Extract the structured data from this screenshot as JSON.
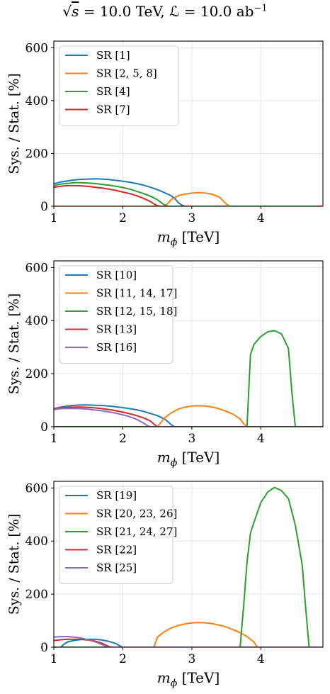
{
  "figure": {
    "title_sqrt": "√",
    "title_s": "s",
    "title_rest": " = 10.0 TeV, ℒ = 10.0 ab",
    "title_sup": "−1"
  },
  "colors": {
    "blue": "#1f77b4",
    "orange": "#ff7f0e",
    "green": "#2ca02c",
    "red": "#d62728",
    "purple": "#9467bd"
  },
  "chart_data": [
    {
      "type": "line",
      "xlabel_main": "m",
      "xlabel_sub": "ϕ",
      "xlabel_unit": " [TeV]",
      "ylabel": "Sys. / Stat. [%]",
      "xlim": [
        1.0,
        4.9
      ],
      "ylim": [
        0,
        625
      ],
      "xticks": [
        "1",
        "2",
        "3",
        "4"
      ],
      "xtick_values": [
        1,
        2,
        3,
        4
      ],
      "yticks": [
        "0",
        "200",
        "400",
        "600"
      ],
      "ytick_values": [
        0,
        200,
        400,
        600
      ],
      "grid": true,
      "legend_position": "top-left",
      "series": [
        {
          "name": "SR [1]",
          "color": "#1f77b4",
          "x": [
            1.0,
            1.1,
            1.2,
            1.3,
            1.4,
            1.5,
            1.6,
            1.7,
            1.8,
            1.9,
            2.0,
            2.1,
            2.2,
            2.3,
            2.4,
            2.5,
            2.6,
            2.7,
            2.75,
            2.8,
            2.85,
            2.9,
            4.9
          ],
          "y": [
            85,
            92,
            96,
            100,
            102,
            103,
            104,
            103,
            101,
            98,
            95,
            91,
            86,
            80,
            72,
            63,
            52,
            40,
            30,
            15,
            5,
            0,
            0
          ]
        },
        {
          "name": "SR [2, 5, 8]",
          "color": "#ff7f0e",
          "x": [
            1.0,
            2.6,
            2.65,
            2.7,
            2.8,
            2.9,
            3.0,
            3.1,
            3.2,
            3.3,
            3.4,
            3.45,
            3.5,
            3.55,
            4.9
          ],
          "y": [
            0,
            0,
            10,
            25,
            40,
            46,
            50,
            52,
            50,
            45,
            35,
            22,
            8,
            0,
            0
          ]
        },
        {
          "name": "SR [4]",
          "color": "#2ca02c",
          "x": [
            1.0,
            1.1,
            1.2,
            1.3,
            1.4,
            1.5,
            1.6,
            1.7,
            1.8,
            1.9,
            2.0,
            2.1,
            2.2,
            2.3,
            2.4,
            2.5,
            2.55,
            2.6,
            2.65,
            4.9
          ],
          "y": [
            78,
            84,
            87,
            89,
            89,
            88,
            86,
            83,
            80,
            76,
            71,
            65,
            57,
            48,
            38,
            25,
            15,
            6,
            0,
            0
          ]
        },
        {
          "name": "SR [7]",
          "color": "#d62728",
          "x": [
            1.0,
            1.1,
            1.2,
            1.3,
            1.4,
            1.5,
            1.6,
            1.7,
            1.8,
            1.9,
            2.0,
            2.1,
            2.2,
            2.3,
            2.4,
            2.45,
            2.5,
            2.55,
            4.9
          ],
          "y": [
            72,
            76,
            78,
            78,
            77,
            75,
            72,
            69,
            65,
            60,
            54,
            48,
            40,
            30,
            18,
            9,
            2,
            0,
            0
          ]
        }
      ]
    },
    {
      "type": "line",
      "xlabel_main": "m",
      "xlabel_sub": "ϕ",
      "xlabel_unit": " [TeV]",
      "ylabel": "Sys. / Stat. [%]",
      "xlim": [
        1.0,
        4.9
      ],
      "ylim": [
        0,
        625
      ],
      "xticks": [
        "1",
        "2",
        "3",
        "4"
      ],
      "xtick_values": [
        1,
        2,
        3,
        4
      ],
      "yticks": [
        "0",
        "200",
        "400",
        "600"
      ],
      "ytick_values": [
        0,
        200,
        400,
        600
      ],
      "grid": true,
      "legend_position": "top-left",
      "series": [
        {
          "name": "SR [10]",
          "color": "#1f77b4",
          "x": [
            1.0,
            1.1,
            1.2,
            1.3,
            1.4,
            1.5,
            1.6,
            1.7,
            1.8,
            1.9,
            2.0,
            2.1,
            2.2,
            2.3,
            2.4,
            2.5,
            2.6,
            2.65,
            2.7,
            2.75,
            4.9
          ],
          "y": [
            68,
            74,
            78,
            81,
            82,
            82,
            81,
            80,
            78,
            75,
            72,
            68,
            64,
            58,
            50,
            42,
            30,
            20,
            8,
            0,
            0
          ]
        },
        {
          "name": "SR [11, 14, 17]",
          "color": "#ff7f0e",
          "x": [
            1.0,
            2.5,
            2.55,
            2.6,
            2.7,
            2.8,
            2.9,
            3.0,
            3.1,
            3.2,
            3.3,
            3.4,
            3.5,
            3.6,
            3.7,
            3.75,
            3.8,
            4.9
          ],
          "y": [
            0,
            0,
            15,
            32,
            52,
            66,
            74,
            78,
            79,
            78,
            74,
            67,
            58,
            47,
            30,
            12,
            0,
            0
          ]
        },
        {
          "name": "SR [12, 15, 18]",
          "color": "#2ca02c",
          "x": [
            1.0,
            3.8,
            3.85,
            3.9,
            4.0,
            4.1,
            4.2,
            4.3,
            4.4,
            4.45,
            4.5,
            4.9
          ],
          "y": [
            0,
            0,
            272,
            310,
            340,
            358,
            362,
            350,
            295,
            130,
            0,
            0
          ]
        },
        {
          "name": "SR [13]",
          "color": "#d62728",
          "x": [
            1.0,
            1.1,
            1.2,
            1.3,
            1.4,
            1.5,
            1.6,
            1.7,
            1.8,
            1.9,
            2.0,
            2.1,
            2.2,
            2.3,
            2.4,
            2.45,
            2.5,
            4.9
          ],
          "y": [
            66,
            71,
            73,
            74,
            74,
            73,
            71,
            68,
            65,
            60,
            55,
            49,
            42,
            33,
            22,
            10,
            0,
            0
          ]
        },
        {
          "name": "SR [16]",
          "color": "#9467bd",
          "x": [
            1.0,
            1.1,
            1.2,
            1.3,
            1.4,
            1.5,
            1.6,
            1.7,
            1.8,
            1.9,
            2.0,
            2.1,
            2.2,
            2.3,
            2.35,
            2.4,
            4.9
          ],
          "y": [
            65,
            68,
            69,
            69,
            68,
            66,
            63,
            60,
            56,
            51,
            45,
            38,
            28,
            14,
            5,
            0,
            0
          ]
        }
      ]
    },
    {
      "type": "line",
      "xlabel_main": "m",
      "xlabel_sub": "ϕ",
      "xlabel_unit": " [TeV]",
      "ylabel": "Sys. / Stat. [%]",
      "xlim": [
        1.0,
        4.9
      ],
      "ylim": [
        0,
        625
      ],
      "xticks": [
        "1",
        "2",
        "3",
        "4"
      ],
      "xtick_values": [
        1,
        2,
        3,
        4
      ],
      "yticks": [
        "0",
        "200",
        "400",
        "600"
      ],
      "ytick_values": [
        0,
        200,
        400,
        600
      ],
      "grid": true,
      "legend_position": "top-left",
      "series": [
        {
          "name": "SR [19]",
          "color": "#1f77b4",
          "x": [
            1.0,
            1.1,
            1.15,
            1.2,
            1.3,
            1.4,
            1.5,
            1.6,
            1.7,
            1.8,
            1.9,
            1.95,
            2.0,
            4.9
          ],
          "y": [
            0,
            0,
            12,
            20,
            26,
            29,
            30,
            30,
            27,
            22,
            14,
            6,
            0,
            0
          ]
        },
        {
          "name": "SR [20, 23, 26]",
          "color": "#ff7f0e",
          "x": [
            1.0,
            2.45,
            2.5,
            2.6,
            2.7,
            2.8,
            2.9,
            3.0,
            3.1,
            3.2,
            3.3,
            3.4,
            3.5,
            3.6,
            3.7,
            3.8,
            3.9,
            3.95,
            4.9
          ],
          "y": [
            0,
            0,
            38,
            58,
            72,
            82,
            88,
            92,
            93,
            92,
            89,
            83,
            76,
            66,
            55,
            40,
            20,
            0,
            0
          ]
        },
        {
          "name": "SR [21, 24, 27]",
          "color": "#2ca02c",
          "x": [
            1.0,
            3.7,
            3.75,
            3.8,
            3.85,
            3.9,
            4.0,
            4.1,
            4.2,
            4.3,
            4.4,
            4.5,
            4.6,
            4.65,
            4.7,
            4.9
          ],
          "y": [
            0,
            0,
            150,
            320,
            430,
            470,
            545,
            585,
            602,
            590,
            560,
            460,
            310,
            150,
            0,
            0
          ]
        },
        {
          "name": "SR [22]",
          "color": "#d62728",
          "x": [
            1.0,
            1.1,
            1.2,
            1.3,
            1.4,
            1.5,
            1.6,
            1.7,
            1.75,
            1.8,
            1.85,
            4.9
          ],
          "y": [
            25,
            28,
            30,
            30,
            29,
            27,
            23,
            15,
            8,
            2,
            0,
            0
          ]
        },
        {
          "name": "SR [25]",
          "color": "#9467bd",
          "x": [
            1.0,
            1.1,
            1.2,
            1.3,
            1.4,
            1.5,
            1.6,
            1.7,
            1.75,
            1.8,
            4.9
          ],
          "y": [
            38,
            40,
            40,
            38,
            34,
            28,
            20,
            10,
            4,
            0,
            0
          ]
        }
      ]
    }
  ]
}
